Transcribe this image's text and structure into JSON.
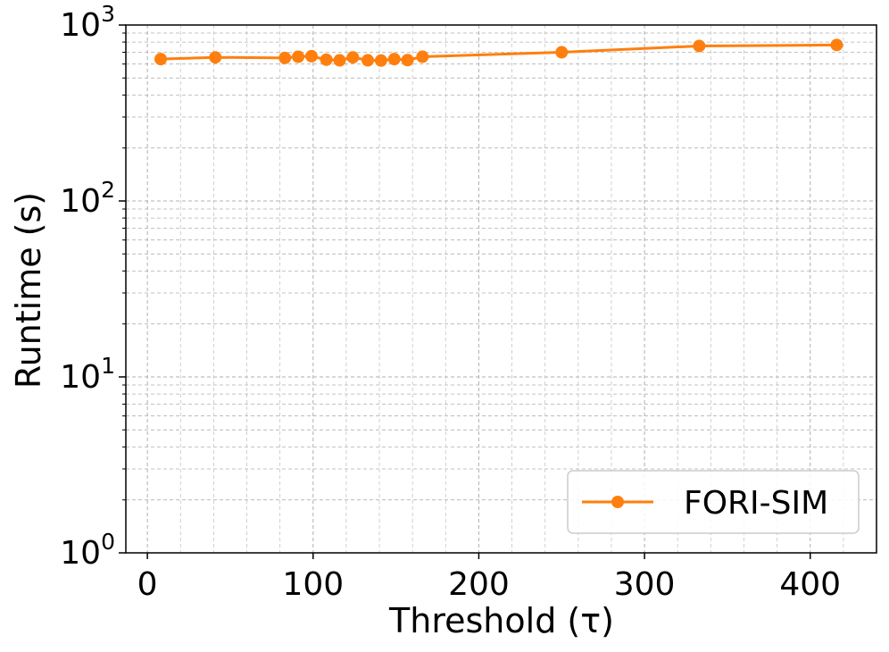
{
  "chart_data": {
    "type": "line",
    "title": "",
    "xlabel": "Threshold (τ)",
    "ylabel": "Runtime (s)",
    "xlim": [
      -13,
      440
    ],
    "ylim": [
      1,
      1000
    ],
    "y_scale": "log",
    "x_ticks": [
      0,
      100,
      200,
      300,
      400
    ],
    "x_tick_labels": [
      "0",
      "100",
      "200",
      "300",
      "400"
    ],
    "y_ticks": [
      1,
      10,
      100,
      1000
    ],
    "y_tick_labels": [
      {
        "base": "10",
        "exp": "0"
      },
      {
        "base": "10",
        "exp": "1"
      },
      {
        "base": "10",
        "exp": "2"
      },
      {
        "base": "10",
        "exp": "3"
      }
    ],
    "grid": true,
    "legend_position": "bottom-right",
    "series": [
      {
        "name": "FORI-SIM",
        "color": "#ff7f0e",
        "marker": "circle",
        "x": [
          8,
          41,
          83,
          91,
          99,
          108,
          116,
          124,
          133,
          141,
          149,
          157,
          166,
          250,
          333,
          416
        ],
        "y": [
          640,
          655,
          650,
          660,
          665,
          635,
          630,
          655,
          630,
          628,
          640,
          632,
          660,
          700,
          760,
          770
        ]
      }
    ]
  }
}
